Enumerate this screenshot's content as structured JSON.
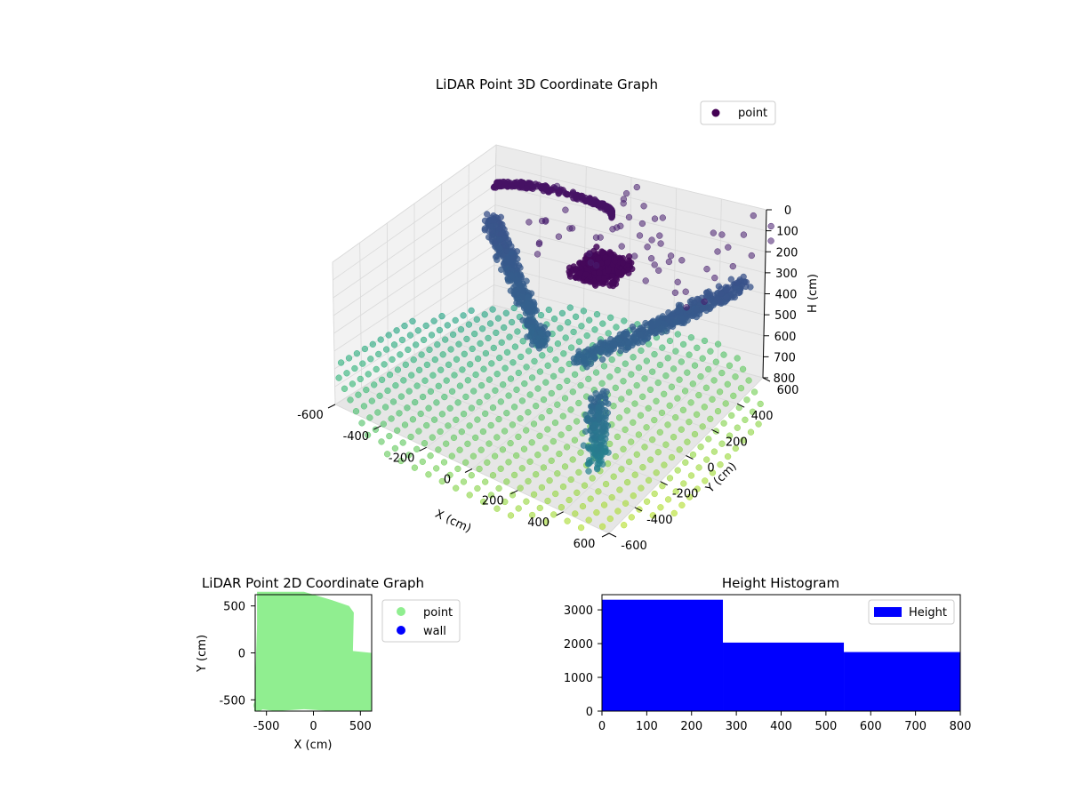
{
  "chart_data": [
    {
      "type": "scatter3d",
      "title": "LiDAR Point 3D Coordinate Graph",
      "xlabel": "X (cm)",
      "ylabel": "Y (cm)",
      "zlabel": "H (cm)",
      "xlim": [
        -600,
        600
      ],
      "ylim": [
        -600,
        600
      ],
      "zlim": [
        800,
        0
      ],
      "xticks": [
        -600,
        -400,
        -200,
        0,
        200,
        400,
        600
      ],
      "yticks": [
        -600,
        -400,
        -200,
        0,
        200,
        400,
        600
      ],
      "zticks": [
        0,
        100,
        200,
        300,
        400,
        500,
        600,
        700,
        800
      ],
      "colormap": "viridis",
      "legend": {
        "placement": "upper-right",
        "entries": [
          {
            "label": "point",
            "color": "#440154"
          }
        ]
      },
      "series": [
        {
          "name": "point",
          "description": "floor grid points (h~800), wall points (h~400), ceiling cluster (h~250) and scattered upper points (h~0-100)"
        }
      ]
    },
    {
      "type": "scatter",
      "title": "LiDAR Point 2D Coordinate Graph",
      "xlabel": "X (cm)",
      "ylabel": "Y (cm)",
      "xlim": [
        -620,
        620
      ],
      "ylim": [
        -620,
        620
      ],
      "xticks": [
        -500,
        0,
        500
      ],
      "yticks": [
        -500,
        0,
        500
      ],
      "legend": {
        "placement": "outside-right",
        "entries": [
          {
            "label": "point",
            "color": "#90ee90"
          },
          {
            "label": "wall",
            "color": "#0000ff"
          }
        ]
      }
    },
    {
      "type": "bar",
      "title": "Height Histogram",
      "xlim": [
        0,
        800
      ],
      "ylim": [
        0,
        3450
      ],
      "xticks": [
        0,
        100,
        200,
        300,
        400,
        500,
        600,
        700,
        800
      ],
      "yticks": [
        0,
        1000,
        2000,
        3000
      ],
      "bins": [
        0,
        270,
        540,
        800
      ],
      "counts": [
        3300,
        2030,
        1750
      ],
      "color": "#0000ff",
      "legend": {
        "placement": "upper-right",
        "entries": [
          {
            "label": "Height",
            "color": "#0000ff"
          }
        ]
      }
    }
  ]
}
